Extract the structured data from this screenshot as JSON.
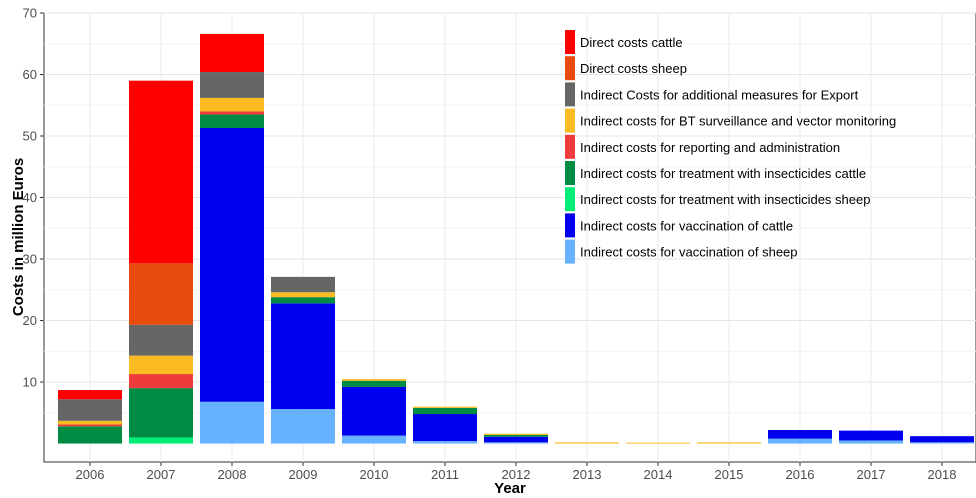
{
  "chart_data": {
    "type": "bar",
    "stacked": true,
    "xlabel": "Year",
    "ylabel": "Costs in million Euros",
    "ylim": [
      -3,
      70
    ],
    "yticks": [
      10,
      20,
      30,
      40,
      50,
      60,
      70
    ],
    "grid": true,
    "legend_position": "top-right",
    "categories": [
      "2006",
      "2007",
      "2008",
      "2009",
      "2010",
      "2011",
      "2012",
      "2013",
      "2014",
      "2015",
      "2016",
      "2017",
      "2018"
    ],
    "series": [
      {
        "name": "Indirect costs for vaccination of sheep",
        "color": "#66b2ff",
        "values": [
          0,
          0,
          6.8,
          5.6,
          1.3,
          0.4,
          0.2,
          0,
          0,
          0,
          0.8,
          0.5,
          0.2
        ]
      },
      {
        "name": "Indirect costs for vaccination of cattle",
        "color": "#0000ee",
        "values": [
          0,
          0,
          44.5,
          17.2,
          7.9,
          4.4,
          0.9,
          0,
          0,
          0,
          1.4,
          1.6,
          1.0
        ]
      },
      {
        "name": "Indirect costs for treatment with insecticides sheep",
        "color": "#00ee76",
        "values": [
          0,
          1.0,
          0,
          0,
          0,
          0,
          0,
          0,
          0,
          0,
          0,
          0,
          0
        ]
      },
      {
        "name": "Indirect costs for treatment with insecticides cattle",
        "color": "#008b45",
        "values": [
          2.8,
          8.0,
          2.2,
          1.0,
          1.0,
          1.0,
          0.3,
          0,
          0,
          0,
          0,
          0,
          0
        ]
      },
      {
        "name": "Indirect costs for reporting and administration",
        "color": "#ee3b3b",
        "values": [
          0.3,
          2.3,
          0.5,
          0,
          0,
          0,
          0,
          0,
          0,
          0,
          0,
          0,
          0
        ]
      },
      {
        "name": "Indirect costs for BT surveillance and vector monitoring",
        "color": "#fbbc23",
        "values": [
          0.6,
          3.0,
          2.2,
          0.8,
          0.3,
          0.2,
          0.2,
          0.2,
          0.15,
          0.2,
          0,
          0,
          0
        ]
      },
      {
        "name": "Indirect Costs for additional measures for Export",
        "color": "#666666",
        "values": [
          3.5,
          5.0,
          4.2,
          2.5,
          0,
          0,
          0,
          0,
          0,
          0,
          0,
          0,
          0
        ]
      },
      {
        "name": "Direct costs sheep",
        "color": "#e84a0c",
        "values": [
          0,
          10.0,
          0,
          0,
          0,
          0,
          0,
          0,
          0,
          0,
          0,
          0,
          0
        ]
      },
      {
        "name": "Direct costs cattle",
        "color": "#ff0000",
        "values": [
          1.5,
          29.7,
          6.2,
          0,
          0,
          0,
          0,
          0,
          0,
          0,
          0,
          0,
          0
        ]
      }
    ],
    "legend_order": [
      "Direct costs cattle",
      "Direct costs sheep",
      "Indirect Costs for additional measures for Export",
      "Indirect costs for BT surveillance and vector monitoring",
      "Indirect costs for reporting and administration",
      "Indirect costs for treatment with insecticides cattle",
      "Indirect costs for treatment with insecticides sheep",
      "Indirect costs for vaccination of cattle",
      "Indirect costs for vaccination of sheep"
    ]
  }
}
